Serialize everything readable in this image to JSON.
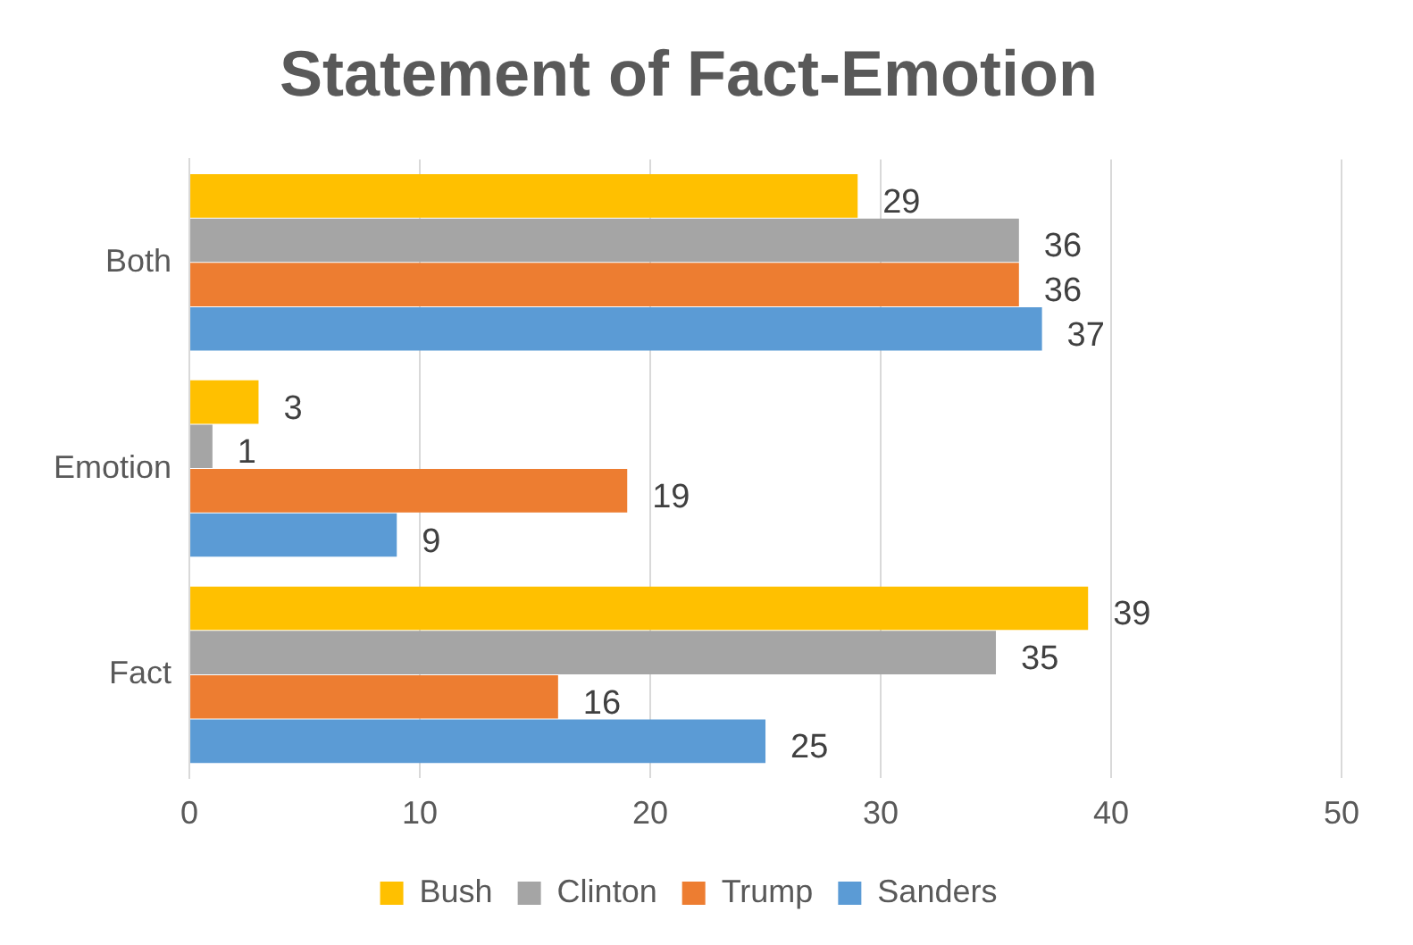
{
  "chart_data": {
    "type": "bar",
    "orientation": "horizontal",
    "title": "Statement of Fact-Emotion",
    "categories": [
      "Both",
      "Emotion",
      "Fact"
    ],
    "series": [
      {
        "name": "Bush",
        "color": "#ffc000",
        "values": [
          29,
          3,
          39
        ]
      },
      {
        "name": "Clinton",
        "color": "#a5a5a5",
        "values": [
          36,
          1,
          35
        ]
      },
      {
        "name": "Trump",
        "color": "#ed7d31",
        "values": [
          36,
          19,
          16
        ]
      },
      {
        "name": "Sanders",
        "color": "#5b9bd5",
        "values": [
          37,
          9,
          25
        ]
      }
    ],
    "xlim": [
      0,
      50
    ],
    "xticks": [
      0,
      10,
      20,
      30,
      40,
      50
    ],
    "grid": "x",
    "legend": "bottom",
    "data_labels": true
  }
}
